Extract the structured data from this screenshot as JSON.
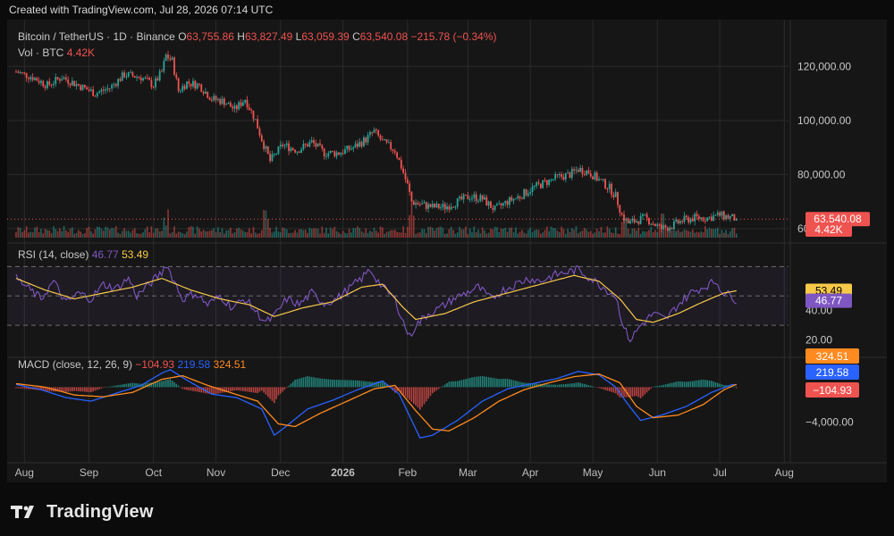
{
  "header": {
    "created": "Created with TradingView.com, Jul 28, 2026 07:14 UTC"
  },
  "colors": {
    "up": "#26a69a",
    "down": "#ef5350",
    "rsi": "#7e57c2",
    "rsi_ma": "#f7c948",
    "macd": "#2962ff",
    "signal": "#ff8a1f",
    "grid": "#2a2a2a",
    "bg": "#161616"
  },
  "chart_data": [
    {
      "type": "candlestick",
      "title": "Bitcoin / TetherUS · 1D · Binance",
      "ohlc_legend": {
        "o_label": "O",
        "o": "63,755.86",
        "h_label": "H",
        "h": "63,827.49",
        "l_label": "L",
        "l": "63,059.39",
        "c_label": "C",
        "c": "63,540.08",
        "change": "−215.78 (−0.34%)"
      },
      "volume_legend": {
        "label": "Vol · BTC",
        "value": "4.42K"
      },
      "ylim": [
        58000,
        130000
      ],
      "y_ticks": [
        "120,000.00",
        "100,000.00",
        "80,000.00",
        "60,000.00"
      ],
      "last_price_label": "63,540.08",
      "volume_label": "4.42K",
      "x_ticks": [
        "Aug",
        "Sep",
        "Oct",
        "Nov",
        "Dec",
        "2026",
        "Feb",
        "Mar",
        "Apr",
        "May",
        "Jun",
        "Jul",
        "Aug"
      ],
      "close_path": [
        [
          0,
          118000
        ],
        [
          8,
          116000
        ],
        [
          15,
          113000
        ],
        [
          22,
          116000
        ],
        [
          30,
          113000
        ],
        [
          38,
          110000
        ],
        [
          45,
          112000
        ],
        [
          52,
          117000
        ],
        [
          60,
          116000
        ],
        [
          66,
          113000
        ],
        [
          70,
          118000
        ],
        [
          72,
          124000
        ],
        [
          75,
          122000
        ],
        [
          78,
          111000
        ],
        [
          82,
          114000
        ],
        [
          88,
          113000
        ],
        [
          94,
          108000
        ],
        [
          100,
          107000
        ],
        [
          105,
          104000
        ],
        [
          110,
          108000
        ],
        [
          115,
          100000
        ],
        [
          118,
          93000
        ],
        [
          122,
          85000
        ],
        [
          128,
          91000
        ],
        [
          135,
          89000
        ],
        [
          142,
          92000
        ],
        [
          148,
          88000
        ],
        [
          155,
          88000
        ],
        [
          162,
          90000
        ],
        [
          168,
          93000
        ],
        [
          172,
          96000
        ],
        [
          176,
          92000
        ],
        [
          182,
          89000
        ],
        [
          185,
          83000
        ],
        [
          188,
          76000
        ],
        [
          190,
          70000
        ],
        [
          194,
          69000
        ],
        [
          200,
          68000
        ],
        [
          206,
          68000
        ],
        [
          212,
          70000
        ],
        [
          218,
          72000
        ],
        [
          224,
          71000
        ],
        [
          230,
          67000
        ],
        [
          236,
          70000
        ],
        [
          242,
          72000
        ],
        [
          248,
          75000
        ],
        [
          254,
          77000
        ],
        [
          260,
          79000
        ],
        [
          266,
          80000
        ],
        [
          270,
          82000
        ],
        [
          275,
          81000
        ],
        [
          280,
          78000
        ],
        [
          285,
          75000
        ],
        [
          288,
          72000
        ],
        [
          291,
          65000
        ],
        [
          294,
          62000
        ],
        [
          298,
          63000
        ],
        [
          302,
          64000
        ],
        [
          306,
          62000
        ],
        [
          310,
          60000
        ],
        [
          315,
          61000
        ],
        [
          320,
          63000
        ],
        [
          326,
          64000
        ],
        [
          332,
          64000
        ],
        [
          338,
          65000
        ],
        [
          344,
          64000
        ],
        [
          346,
          63540
        ]
      ],
      "volume_spikes": [
        [
          72,
          1.6
        ],
        [
          120,
          1.9
        ],
        [
          190,
          2.2
        ],
        [
          292,
          1.7
        ],
        [
          310,
          1.3
        ]
      ]
    },
    {
      "type": "line",
      "title": "RSI (14, close)",
      "series": [
        {
          "name": "RSI",
          "last": "46.77"
        },
        {
          "name": "RSI-based MA",
          "last": "53.49"
        }
      ],
      "ylim": [
        10,
        80
      ],
      "y_ticks": [
        "40.00",
        "20.00"
      ],
      "levels": [
        70,
        50,
        30
      ],
      "rsi_path": [
        [
          0,
          62
        ],
        [
          6,
          55
        ],
        [
          12,
          48
        ],
        [
          18,
          60
        ],
        [
          24,
          45
        ],
        [
          30,
          52
        ],
        [
          36,
          48
        ],
        [
          42,
          58
        ],
        [
          48,
          55
        ],
        [
          54,
          62
        ],
        [
          58,
          50
        ],
        [
          64,
          58
        ],
        [
          70,
          66
        ],
        [
          72,
          72
        ],
        [
          76,
          60
        ],
        [
          80,
          48
        ],
        [
          86,
          52
        ],
        [
          92,
          44
        ],
        [
          98,
          50
        ],
        [
          104,
          42
        ],
        [
          110,
          48
        ],
        [
          116,
          38
        ],
        [
          120,
          32
        ],
        [
          124,
          36
        ],
        [
          130,
          48
        ],
        [
          136,
          44
        ],
        [
          142,
          52
        ],
        [
          148,
          45
        ],
        [
          154,
          48
        ],
        [
          160,
          55
        ],
        [
          166,
          62
        ],
        [
          170,
          68
        ],
        [
          176,
          56
        ],
        [
          182,
          48
        ],
        [
          186,
          32
        ],
        [
          189,
          22
        ],
        [
          192,
          30
        ],
        [
          198,
          38
        ],
        [
          204,
          42
        ],
        [
          210,
          48
        ],
        [
          216,
          52
        ],
        [
          222,
          56
        ],
        [
          228,
          48
        ],
        [
          234,
          54
        ],
        [
          240,
          58
        ],
        [
          246,
          62
        ],
        [
          252,
          60
        ],
        [
          258,
          64
        ],
        [
          264,
          66
        ],
        [
          270,
          68
        ],
        [
          276,
          62
        ],
        [
          282,
          56
        ],
        [
          288,
          50
        ],
        [
          292,
          28
        ],
        [
          295,
          20
        ],
        [
          300,
          30
        ],
        [
          306,
          38
        ],
        [
          312,
          34
        ],
        [
          318,
          44
        ],
        [
          324,
          52
        ],
        [
          330,
          56
        ],
        [
          336,
          60
        ],
        [
          340,
          52
        ],
        [
          344,
          50
        ],
        [
          346,
          46.8
        ]
      ],
      "ma_path": [
        [
          0,
          62
        ],
        [
          14,
          54
        ],
        [
          28,
          48
        ],
        [
          42,
          52
        ],
        [
          56,
          56
        ],
        [
          70,
          62
        ],
        [
          84,
          54
        ],
        [
          98,
          48
        ],
        [
          112,
          44
        ],
        [
          124,
          36
        ],
        [
          138,
          42
        ],
        [
          152,
          46
        ],
        [
          166,
          56
        ],
        [
          176,
          58
        ],
        [
          186,
          42
        ],
        [
          192,
          34
        ],
        [
          206,
          38
        ],
        [
          220,
          46
        ],
        [
          236,
          52
        ],
        [
          252,
          58
        ],
        [
          268,
          64
        ],
        [
          280,
          60
        ],
        [
          290,
          48
        ],
        [
          298,
          34
        ],
        [
          306,
          32
        ],
        [
          318,
          38
        ],
        [
          330,
          46
        ],
        [
          340,
          52
        ],
        [
          346,
          53.5
        ]
      ]
    },
    {
      "type": "line",
      "title": "MACD (close, 12, 26, 9)",
      "series": [
        {
          "name": "Histogram",
          "last": "−104.93"
        },
        {
          "name": "MACD",
          "last": "219.58"
        },
        {
          "name": "Signal",
          "last": "324.51"
        }
      ],
      "ylim": [
        -6500,
        3000
      ],
      "y_ticks": [
        "−4,000.00"
      ],
      "macd_path": [
        [
          0,
          300
        ],
        [
          12,
          -300
        ],
        [
          24,
          -1200
        ],
        [
          36,
          -1600
        ],
        [
          48,
          -700
        ],
        [
          60,
          200
        ],
        [
          70,
          1600
        ],
        [
          74,
          2000
        ],
        [
          82,
          800
        ],
        [
          94,
          -800
        ],
        [
          106,
          -1200
        ],
        [
          118,
          -2500
        ],
        [
          124,
          -5500
        ],
        [
          128,
          -4800
        ],
        [
          140,
          -2500
        ],
        [
          152,
          -1500
        ],
        [
          164,
          -300
        ],
        [
          176,
          700
        ],
        [
          184,
          -800
        ],
        [
          190,
          -3800
        ],
        [
          194,
          -5800
        ],
        [
          200,
          -5500
        ],
        [
          212,
          -3800
        ],
        [
          224,
          -1600
        ],
        [
          236,
          -200
        ],
        [
          248,
          400
        ],
        [
          260,
          1000
        ],
        [
          270,
          1800
        ],
        [
          280,
          1400
        ],
        [
          288,
          0
        ],
        [
          294,
          -2000
        ],
        [
          300,
          -3800
        ],
        [
          310,
          -3200
        ],
        [
          322,
          -2200
        ],
        [
          334,
          -600
        ],
        [
          344,
          300
        ],
        [
          346,
          219
        ]
      ],
      "signal_path": [
        [
          0,
          400
        ],
        [
          14,
          0
        ],
        [
          28,
          -900
        ],
        [
          42,
          -1100
        ],
        [
          56,
          -600
        ],
        [
          70,
          900
        ],
        [
          80,
          1300
        ],
        [
          92,
          200
        ],
        [
          104,
          -700
        ],
        [
          116,
          -1600
        ],
        [
          126,
          -4200
        ],
        [
          134,
          -4500
        ],
        [
          146,
          -3000
        ],
        [
          160,
          -1500
        ],
        [
          172,
          -200
        ],
        [
          182,
          200
        ],
        [
          192,
          -2700
        ],
        [
          200,
          -4800
        ],
        [
          208,
          -5000
        ],
        [
          220,
          -3500
        ],
        [
          232,
          -1600
        ],
        [
          244,
          -300
        ],
        [
          256,
          500
        ],
        [
          268,
          1200
        ],
        [
          280,
          1500
        ],
        [
          290,
          500
        ],
        [
          298,
          -2200
        ],
        [
          306,
          -3500
        ],
        [
          318,
          -3200
        ],
        [
          330,
          -2000
        ],
        [
          340,
          -300
        ],
        [
          346,
          324
        ]
      ]
    }
  ],
  "brand": {
    "name": "TradingView"
  }
}
